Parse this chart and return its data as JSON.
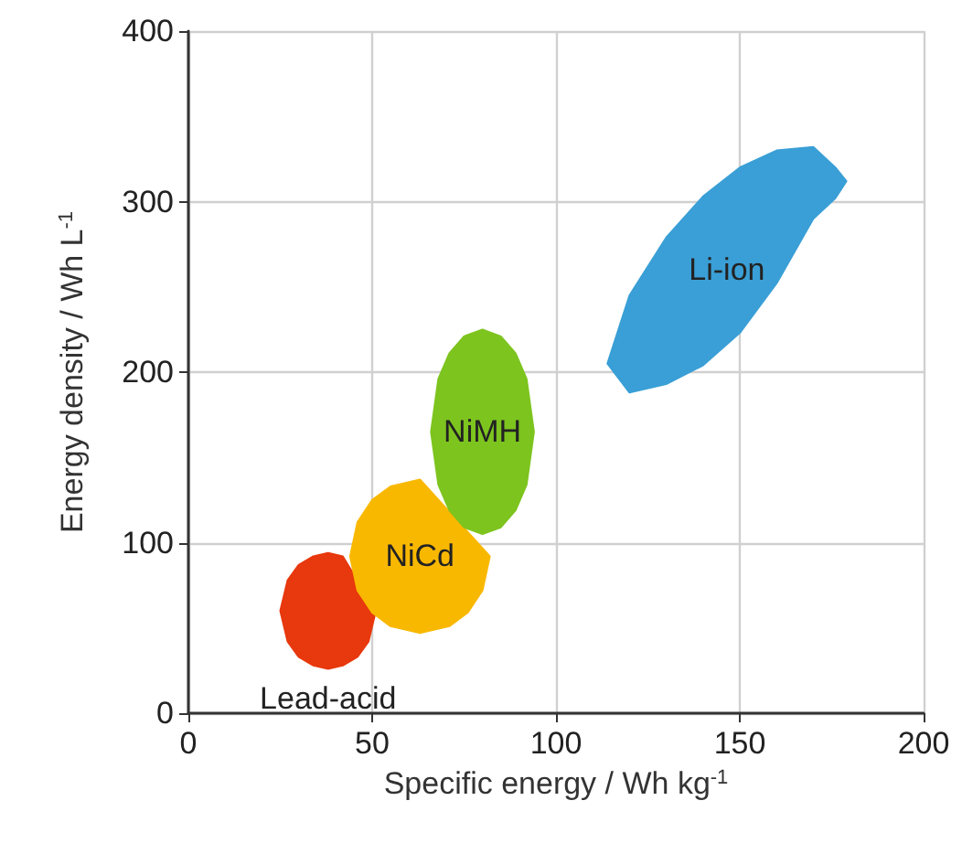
{
  "chart_data": {
    "type": "area",
    "xlabel": "Specific energy / Wh kg$^{-1}$",
    "ylabel": "Energy density / Wh L$^{-1}$",
    "xlim": [
      0,
      200
    ],
    "xticks": [
      0,
      50,
      100,
      150,
      200
    ],
    "ylim": [
      0,
      400
    ],
    "yticks": [
      0,
      100,
      200,
      300,
      400
    ],
    "grid": true,
    "series": [
      {
        "name": "Lead-acid",
        "color": "#e8380d",
        "x": [
          25,
          27,
          30,
          34,
          38,
          42,
          46,
          49,
          51,
          49,
          46,
          42,
          38,
          34,
          30,
          27
        ],
        "values": [
          60,
          78,
          87,
          92,
          94,
          92,
          null,
          null,
          60,
          42,
          33,
          28,
          26,
          28,
          33,
          42
        ]
      },
      {
        "name": "NiCd",
        "color": "#f9b800",
        "x": [
          44,
          46,
          50,
          55,
          63,
          71,
          76,
          80,
          82,
          80,
          76,
          71,
          63,
          55,
          50,
          46
        ],
        "values": [
          92,
          112,
          125,
          133,
          137,
          null,
          null,
          null,
          92,
          72,
          59,
          51,
          47,
          51,
          59,
          72
        ]
      },
      {
        "name": "NiMH",
        "color": "#7dc41f",
        "x": [
          66,
          68,
          71,
          75,
          80,
          85,
          89,
          92,
          94,
          92,
          89,
          85,
          80,
          75,
          71,
          68
        ],
        "values": [
          165,
          196,
          211,
          221,
          225,
          221,
          211,
          196,
          165,
          134,
          119,
          109,
          105,
          109,
          119,
          134
        ]
      },
      {
        "name": "Li-ion",
        "color": "#3a9fd6",
        "x": [
          114,
          120,
          130,
          140,
          150,
          160,
          170,
          176,
          179,
          176,
          170,
          160,
          150,
          140,
          130,
          120
        ],
        "values": [
          205,
          245,
          279,
          303,
          320,
          330,
          332,
          320,
          312,
          302,
          290,
          252,
          223,
          204,
          193,
          188
        ]
      }
    ]
  }
}
